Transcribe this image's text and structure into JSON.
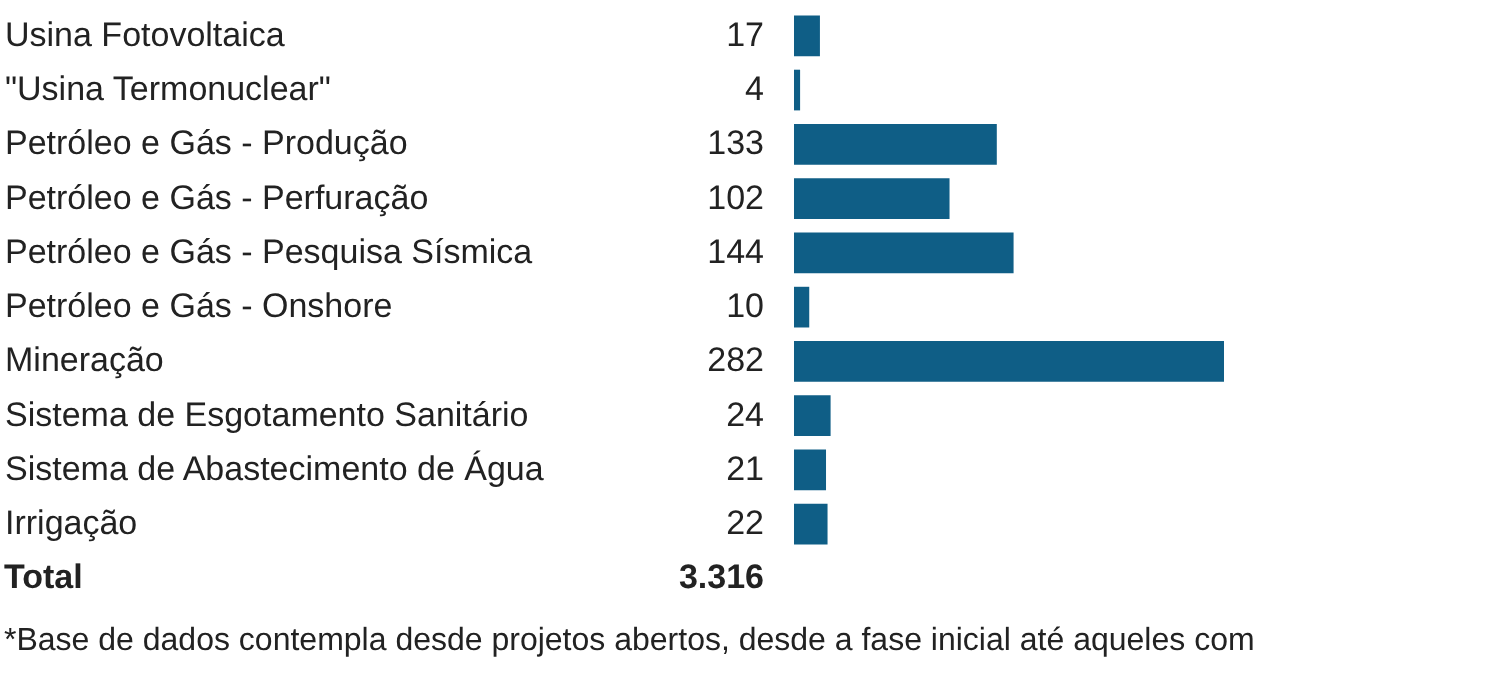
{
  "chart_data": {
    "type": "bar",
    "orientation": "horizontal",
    "data_labels": true,
    "color": "#0f5e86",
    "categories": [
      "Usina Fotovoltaica",
      "\"Usina Termonuclear\"",
      "Petróleo e Gás - Produção",
      "Petróleo e Gás - Perfuração",
      "Petróleo e Gás - Pesquisa Sísmica",
      "Petróleo e Gás - Onshore",
      "Mineração",
      "Sistema de Esgotamento Sanitário",
      "Sistema de Abastecimento de Água",
      "Irrigação"
    ],
    "values": [
      17,
      4,
      133,
      102,
      144,
      10,
      282,
      24,
      21,
      22
    ],
    "annotations": [
      "Total",
      "3.316",
      "*Base de dados contempla desde projetos abertos, desde a fase inicial até aqueles com"
    ]
  }
}
